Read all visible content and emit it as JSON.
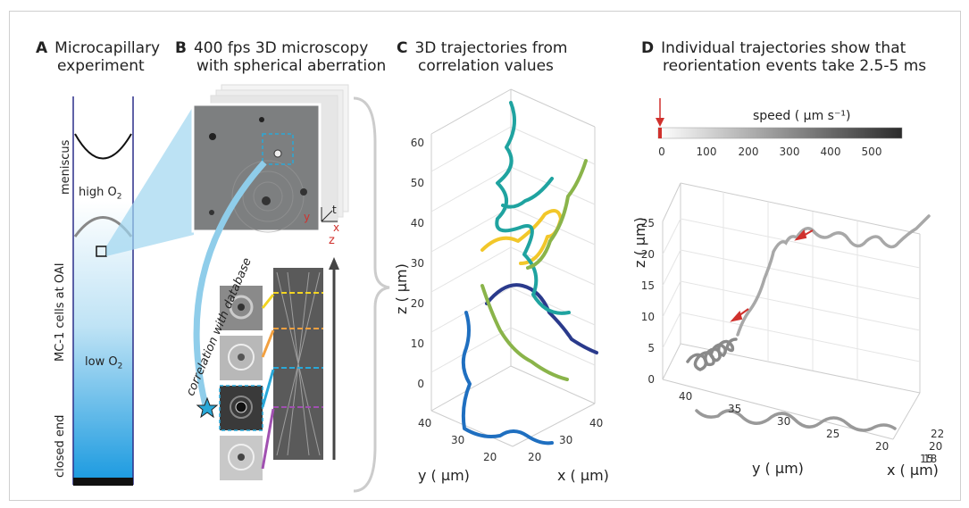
{
  "panels": {
    "a": {
      "letter": "A",
      "title_line1": "Microcapillary",
      "title_line2": "experiment",
      "meniscus": "meniscus",
      "high_o2": "high O",
      "cells": "MC-1 cells at OAI",
      "low_o2": "low O",
      "closed_end": "closed end",
      "sub2": "2"
    },
    "b": {
      "letter": "B",
      "title_line1": "400 fps 3D microscopy",
      "title_line2": "with spherical aberration",
      "axis_y": "y",
      "axis_t": "t",
      "axis_x": "x",
      "axis_z": "z",
      "correlation": "correlation with database"
    },
    "c": {
      "letter": "C",
      "title_line1": "3D trajectories from",
      "title_line2": "correlation values",
      "zlabel": "z ( µm)",
      "ylabel": "y ( µm)",
      "xlabel": "x ( µm)"
    },
    "d": {
      "letter": "D",
      "title_line1": "Individual trajectories show that",
      "title_line2": "reorientation events take 2.5-5 ms",
      "colorbar_title": "speed ( µm s⁻¹)",
      "zlabel": "z ( µm)",
      "ylabel": "y ( µm)",
      "xlabel": "x ( µm)"
    }
  },
  "chart_data": [
    {
      "type": "line",
      "panel": "C",
      "title": "3D trajectories from correlation values",
      "xlabel": "x ( µm)",
      "ylabel": "y ( µm)",
      "zlabel": "z ( µm)",
      "z_ticks": [
        "0",
        "10",
        "20",
        "30",
        "40",
        "50",
        "60"
      ],
      "y_ticks": [
        "40",
        "30",
        "20"
      ],
      "x_ticks": [
        "20",
        "30",
        "40"
      ],
      "zlim": [
        -5,
        60
      ],
      "series_colors": [
        "#1f6fc0",
        "#2a3a8c",
        "#8ab44a",
        "#f2c72a",
        "#1fa3a0"
      ]
    },
    {
      "type": "line",
      "panel": "D",
      "title": "Individual trajectories show that reorientation events take 2.5-5 ms",
      "xlabel": "x ( µm)",
      "ylabel": "y ( µm)",
      "zlabel": "z ( µm)",
      "z_ticks": [
        "0",
        "5",
        "10",
        "15",
        "20",
        "25"
      ],
      "y_ticks": [
        "40",
        "35",
        "30",
        "25",
        "20",
        "15"
      ],
      "x_ticks": [
        "22",
        "20",
        "18"
      ],
      "colorbar": {
        "title": "speed ( µm s⁻¹)",
        "ticks": [
          "0",
          "100",
          "200",
          "300",
          "400",
          "500"
        ],
        "range": [
          0,
          580
        ]
      },
      "annotations": 3
    }
  ]
}
